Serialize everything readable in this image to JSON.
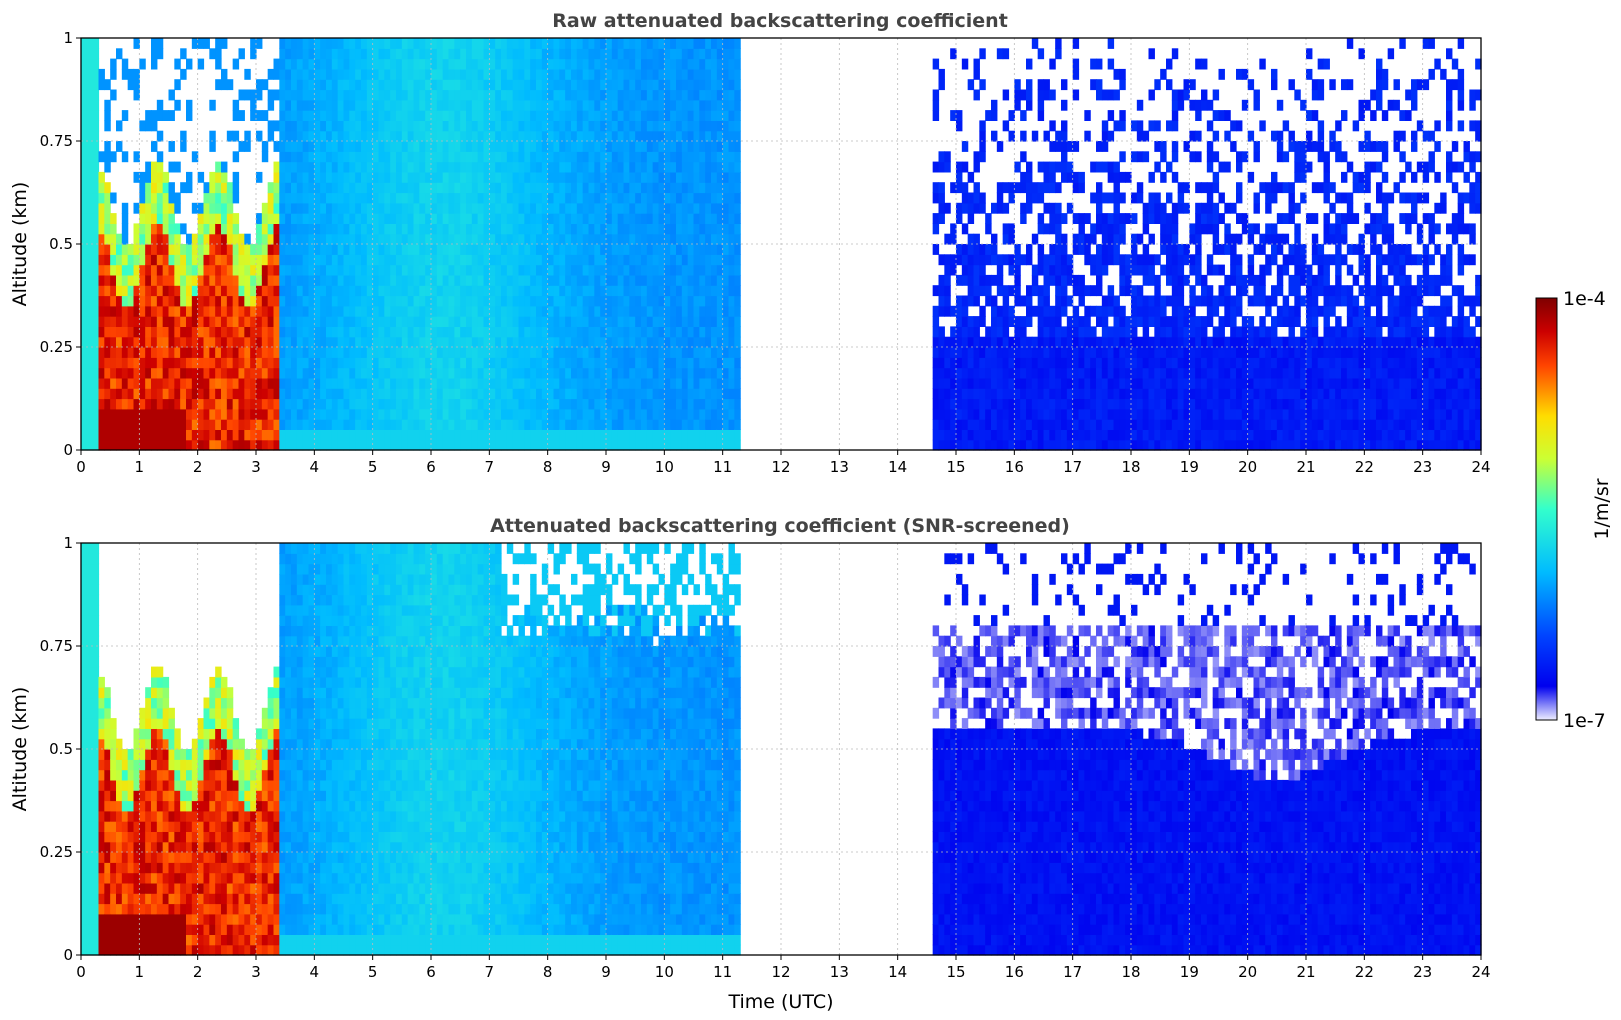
{
  "chart_data": [
    {
      "type": "heatmap",
      "title": "Raw attenuated backscattering coefficient",
      "xlabel": "",
      "ylabel": "Altitude (km)",
      "xlim": [
        0,
        24
      ],
      "ylim": [
        0,
        1
      ],
      "x_ticks": [
        "0",
        "1",
        "2",
        "3",
        "4",
        "5",
        "6",
        "7",
        "8",
        "9",
        "10",
        "11",
        "12",
        "13",
        "14",
        "15",
        "16",
        "17",
        "18",
        "19",
        "20",
        "21",
        "22",
        "23",
        "24"
      ],
      "y_ticks": [
        "0",
        "0.25",
        "0.5",
        "0.75",
        "1"
      ],
      "grid": true,
      "data_gap_hours": [
        11.3,
        14.6
      ],
      "screened": false
    },
    {
      "type": "heatmap",
      "title": "Attenuated backscattering coefficient (SNR-screened)",
      "xlabel": "Time (UTC)",
      "ylabel": "Altitude (km)",
      "xlim": [
        0,
        24
      ],
      "ylim": [
        0,
        1
      ],
      "x_ticks": [
        "0",
        "1",
        "2",
        "3",
        "4",
        "5",
        "6",
        "7",
        "8",
        "9",
        "10",
        "11",
        "12",
        "13",
        "14",
        "15",
        "16",
        "17",
        "18",
        "19",
        "20",
        "21",
        "22",
        "23",
        "24"
      ],
      "y_ticks": [
        "0",
        "0.25",
        "0.5",
        "0.75",
        "1"
      ],
      "grid": true,
      "data_gap_hours": [
        11.3,
        14.6
      ],
      "screened": true
    }
  ],
  "colorbar": {
    "label": "1/m/sr",
    "max_label": "1e-4",
    "min_label": "1e-7",
    "colormap": "jet",
    "scale": "log"
  }
}
